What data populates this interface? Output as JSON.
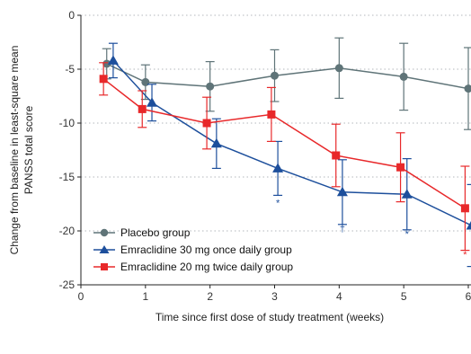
{
  "chart_data": {
    "type": "line",
    "xlabel": "Time since first dose of study treatment (weeks)",
    "ylabel_line1": "Change from baseline in least-square mean",
    "ylabel_line2": "PANSS total score",
    "xlim": [
      0,
      6
    ],
    "ylim": [
      -25,
      0
    ],
    "x_ticks": [
      "0",
      "1",
      "2",
      "3",
      "4",
      "5",
      "6"
    ],
    "y_ticks": [
      "0",
      "-5",
      "-10",
      "-15",
      "-20",
      "-25"
    ],
    "legend_position": "bottom-left",
    "series": [
      {
        "name": "Placebo group",
        "marker": "circle",
        "color": "#5f7478",
        "x": [
          0.4,
          1,
          2,
          3,
          4,
          5,
          6
        ],
        "y": [
          -4.5,
          -6.2,
          -6.6,
          -5.6,
          -4.9,
          -5.7,
          -6.8
        ],
        "err": [
          1.4,
          1.6,
          2.3,
          2.4,
          2.8,
          3.1,
          3.8
        ]
      },
      {
        "name": "Emraclidine 30 mg once daily group",
        "marker": "triangle",
        "color": "#1d4f9c",
        "x": [
          0.5,
          1.1,
          2.1,
          3.05,
          4.05,
          5.05,
          6.05
        ],
        "y": [
          -4.2,
          -8.1,
          -11.9,
          -14.2,
          -16.4,
          -16.6,
          -19.5
        ],
        "err": [
          1.6,
          1.7,
          2.3,
          2.5,
          3.0,
          3.3,
          3.8
        ]
      },
      {
        "name": "Emraclidine 20 mg twice daily group",
        "marker": "square",
        "color": "#e8282a",
        "x": [
          0.35,
          0.95,
          1.95,
          2.95,
          3.95,
          4.95,
          5.95
        ],
        "y": [
          -5.9,
          -8.7,
          -10.0,
          -9.2,
          -13.0,
          -14.1,
          -17.9
        ],
        "err": [
          1.5,
          1.7,
          2.4,
          2.5,
          2.9,
          3.2,
          3.9
        ]
      }
    ],
    "annotations": [
      {
        "text": "*",
        "x": 3.05,
        "y": -17.7,
        "color": "#1d4f9c"
      },
      {
        "text": "†",
        "x": 4.05,
        "y": -20.1,
        "color": "#1d4f9c"
      },
      {
        "text": "*",
        "x": 5.05,
        "y": -20.6,
        "color": "#1d4f9c"
      },
      {
        "text": "*",
        "x": 5.95,
        "y": -22.5,
        "color": "#e8282a"
      }
    ]
  }
}
